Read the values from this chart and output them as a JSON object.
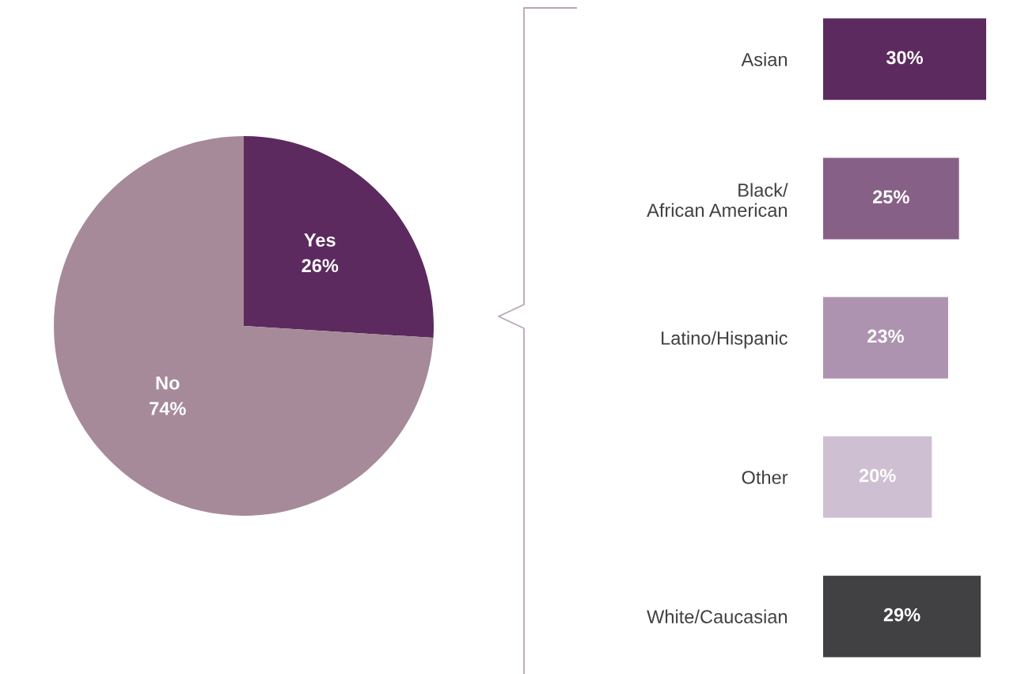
{
  "chart_data": [
    {
      "type": "pie",
      "categories": [
        "Yes",
        "No"
      ],
      "values": [
        26,
        74
      ],
      "value_labels": [
        "26%",
        "74%"
      ],
      "colors": [
        "#5c2a5e",
        "#a68a99"
      ],
      "legend": false
    },
    {
      "type": "bar",
      "orientation": "horizontal",
      "categories": [
        "Asian",
        "Black/\nAfrican American",
        "Latino/Hispanic",
        "Other",
        "White/Caucasian"
      ],
      "values": [
        30,
        25,
        23,
        20,
        29
      ],
      "value_labels": [
        "30%",
        "25%",
        "23%",
        "20%",
        "29%"
      ],
      "colors": [
        "#5c2a5e",
        "#876087",
        "#ae93b0",
        "#cfbfd2",
        "#414042"
      ],
      "legend": false
    }
  ]
}
